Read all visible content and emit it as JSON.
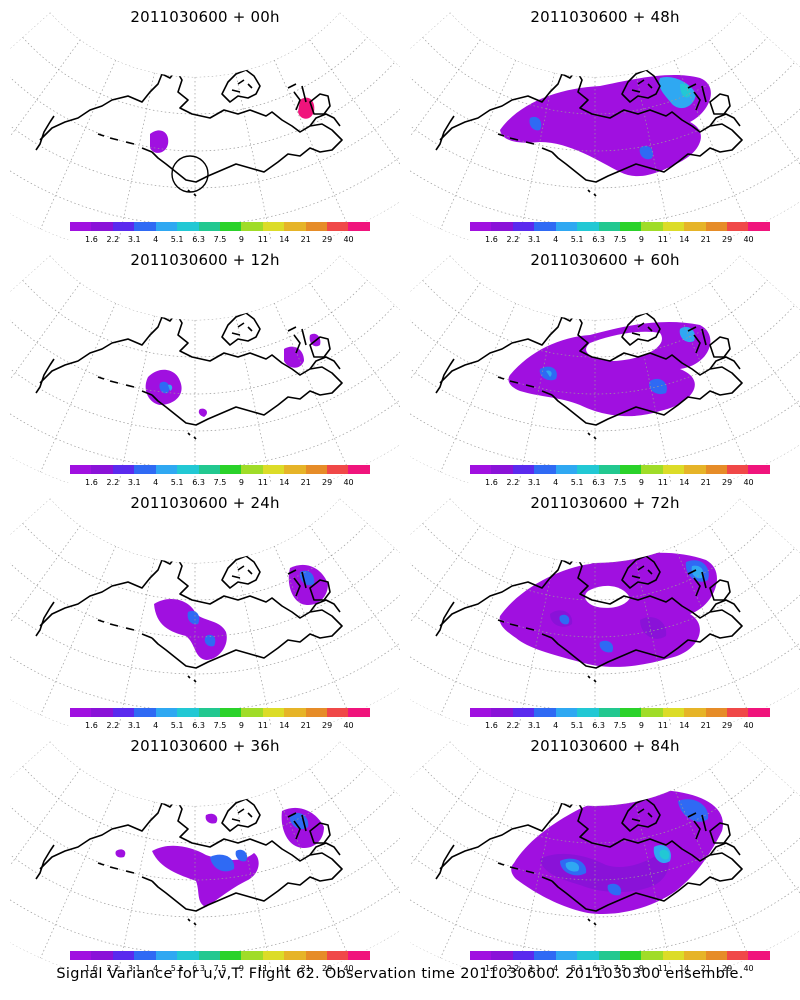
{
  "panels": [
    {
      "title": "2011030600  +  00h",
      "hours": 0
    },
    {
      "title": "2011030600  +  48h",
      "hours": 48
    },
    {
      "title": "2011030600  +  12h",
      "hours": 12
    },
    {
      "title": "2011030600  +  60h",
      "hours": 60
    },
    {
      "title": "2011030600  +  24h",
      "hours": 24
    },
    {
      "title": "2011030600  +  72h",
      "hours": 72
    },
    {
      "title": "2011030600  +  36h",
      "hours": 36
    },
    {
      "title": "2011030600  +  84h",
      "hours": 84
    }
  ],
  "colorbar": {
    "labels": [
      "1.6",
      "2.2",
      "3.1",
      "4",
      "5.1",
      "6.3",
      "7.5",
      "9",
      "11",
      "14",
      "21",
      "29",
      "40"
    ],
    "colors": [
      "#a010e0",
      "#8a12d8",
      "#5a2aee",
      "#2f6af4",
      "#2fa8f2",
      "#22c8d4",
      "#22c890",
      "#2ad22a",
      "#a0dc28",
      "#dcdc28",
      "#e6b428",
      "#e68c28",
      "#f04848",
      "#f0147c"
    ]
  },
  "footer": "Signal Variance for u,v,T. Flight 62. Observation time 2011030600. 2011030300 ensemble."
}
